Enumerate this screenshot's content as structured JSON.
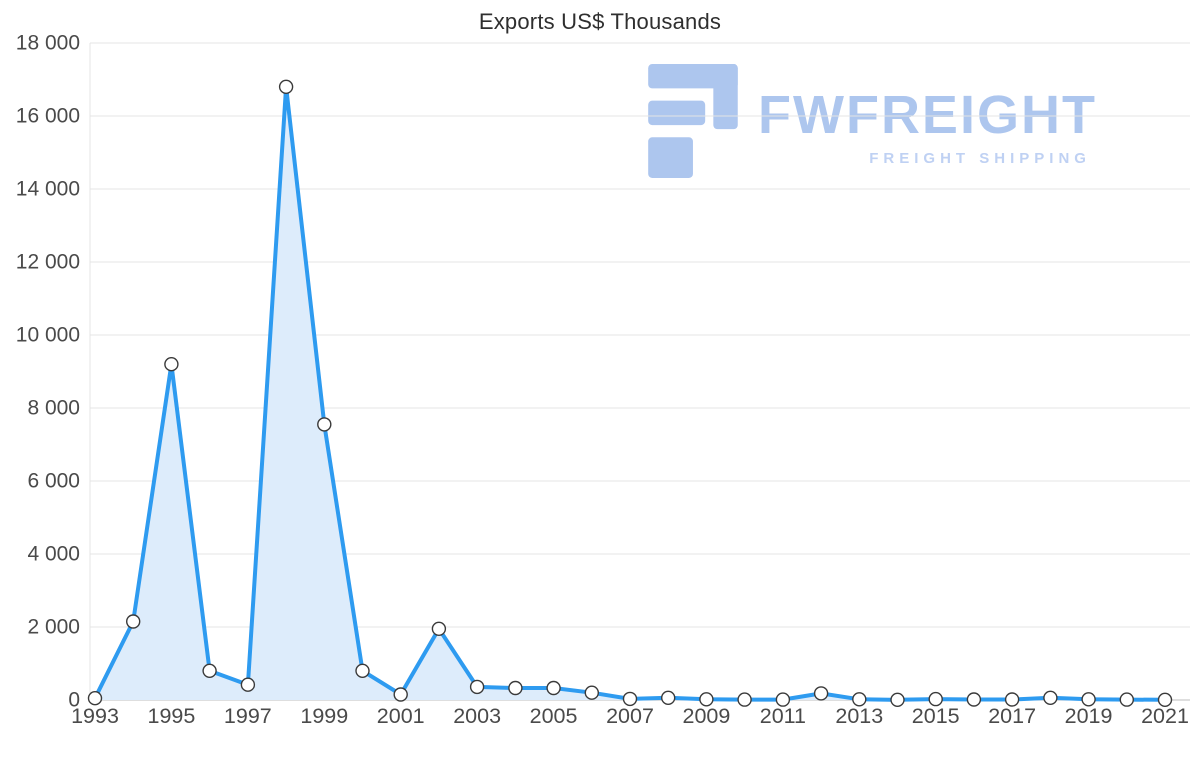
{
  "page": {
    "background": "#ffffff"
  },
  "chart_data": {
    "type": "line",
    "title": "Exports US$ Thousands",
    "xlabel": "",
    "ylabel": "",
    "x": [
      1993,
      1994,
      1995,
      1996,
      1997,
      1998,
      1999,
      2000,
      2001,
      2002,
      2003,
      2004,
      2005,
      2006,
      2007,
      2008,
      2009,
      2010,
      2011,
      2012,
      2013,
      2014,
      2015,
      2016,
      2017,
      2018,
      2019,
      2020,
      2021
    ],
    "series": [
      {
        "name": "Exports US$ Thousands",
        "values": [
          50,
          2150,
          9200,
          800,
          420,
          16800,
          7550,
          800,
          150,
          1950,
          360,
          330,
          330,
          200,
          30,
          60,
          20,
          10,
          10,
          180,
          20,
          5,
          25,
          15,
          15,
          60,
          20,
          10,
          5
        ]
      }
    ],
    "ylim": [
      0,
      18000
    ],
    "ytick_values": [
      0,
      2000,
      4000,
      6000,
      8000,
      10000,
      12000,
      14000,
      16000,
      18000
    ],
    "ytick_labels": [
      "0",
      "2 000",
      "4 000",
      "6 000",
      "8 000",
      "10 000",
      "12 000",
      "14 000",
      "16 000",
      "18 000"
    ],
    "xtick_values": [
      1993,
      1995,
      1997,
      1999,
      2001,
      2003,
      2005,
      2007,
      2009,
      2011,
      2013,
      2015,
      2017,
      2019,
      2021
    ],
    "grid": true,
    "legend": false,
    "line_color": "#2e9bf0",
    "area_color": "#ddecfb",
    "marker": {
      "fill": "#ffffff",
      "stroke": "#3a3a3a"
    },
    "grid_color": "#e4e4e4",
    "axis_line_color": "#bdbdbd",
    "tick_color": "#4a4a4a",
    "title_color": "#2f2f2f"
  },
  "watermark": {
    "brand": "FWFREIGHT",
    "tagline": "FREIGHT SHIPPING",
    "color": "#a9c3ee",
    "tagline_color": "#bccff3"
  }
}
